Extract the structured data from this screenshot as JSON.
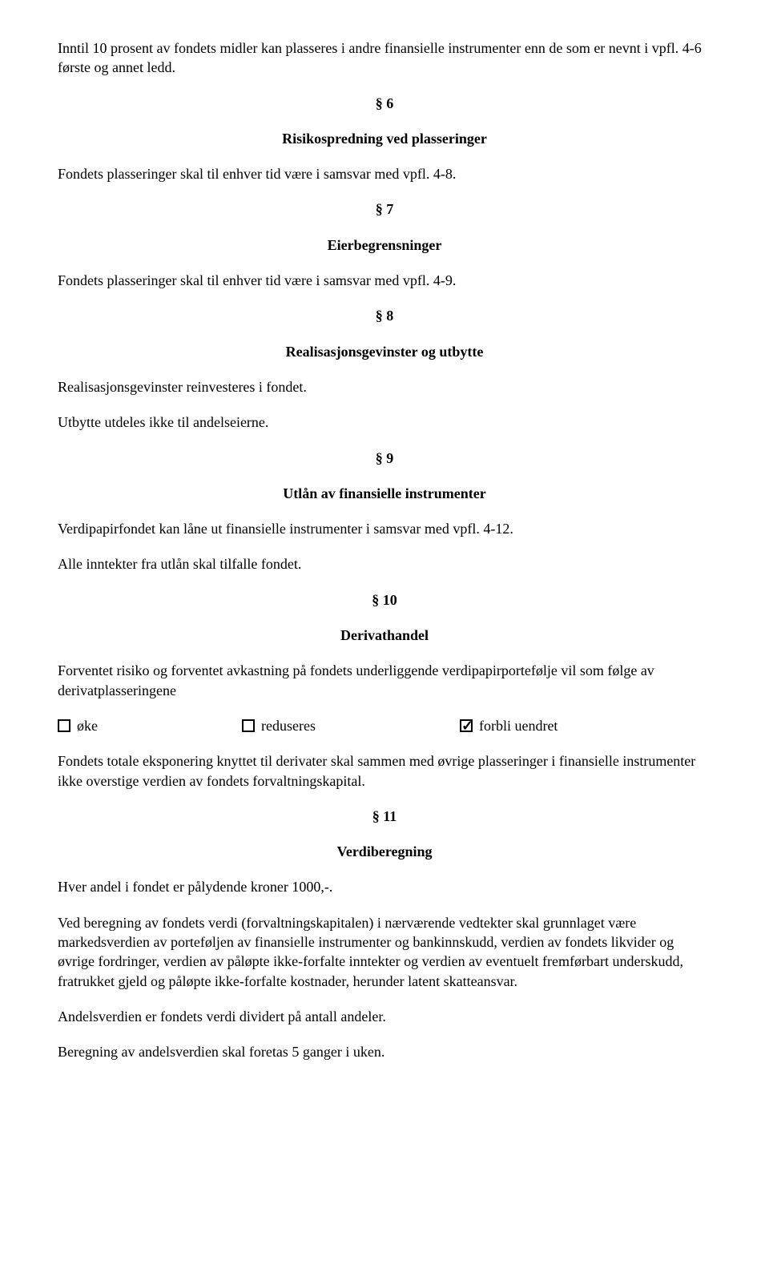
{
  "intro": "Inntil 10 prosent av fondets midler kan plasseres i andre finansielle instrumenter enn de som er nevnt i vpfl. 4-6 første og annet ledd.",
  "s6": {
    "num": "§ 6",
    "title": "Risikospredning ved plasseringer",
    "body": "Fondets plasseringer skal til enhver tid være i samsvar med vpfl. 4-8."
  },
  "s7": {
    "num": "§ 7",
    "title": "Eierbegrensninger",
    "body": "Fondets plasseringer skal til enhver tid være i samsvar med vpfl. 4-9."
  },
  "s8": {
    "num": "§ 8",
    "title": "Realisasjonsgevinster og utbytte",
    "body1": "Realisasjonsgevinster reinvesteres i fondet.",
    "body2": "Utbytte utdeles ikke til andelseierne."
  },
  "s9": {
    "num": "§ 9",
    "title": "Utlån av finansielle instrumenter",
    "body1": "Verdipapirfondet kan låne ut finansielle instrumenter i samsvar med vpfl. 4-12.",
    "body2": "Alle inntekter fra utlån skal tilfalle fondet."
  },
  "s10": {
    "num": "§ 10",
    "title": "Derivathandel",
    "body1": "Forventet risiko og forventet avkastning på fondets underliggende verdipapirportefølje vil som følge av derivatplasseringene",
    "options": {
      "opt1_label": "øke",
      "opt1_checked": false,
      "opt2_label": "reduseres",
      "opt2_checked": false,
      "opt3_label": "forbli uendret",
      "opt3_checked": true
    },
    "body2": "Fondets totale eksponering knyttet til derivater skal sammen med øvrige plasseringer i finansielle instrumenter ikke overstige verdien av fondets forvaltningskapital."
  },
  "s11": {
    "num": "§ 11",
    "title": "Verdiberegning",
    "body1": "Hver andel i fondet er pålydende kroner 1000,-.",
    "body2": "Ved beregning av fondets verdi (forvaltningskapitalen) i nærværende vedtekter skal grunnlaget være markedsverdien av porteføljen av finansielle instrumenter og bankinnskudd, verdien av fondets likvider og øvrige fordringer, verdien av påløpte ikke-forfalte inntekter og verdien av eventuelt fremførbart underskudd, fratrukket gjeld og påløpte ikke-forfalte kostnader, herunder latent skatteansvar.",
    "body3": "Andelsverdien er fondets verdi dividert på antall andeler.",
    "body4": "Beregning av andelsverdien skal foretas 5 ganger i uken."
  }
}
